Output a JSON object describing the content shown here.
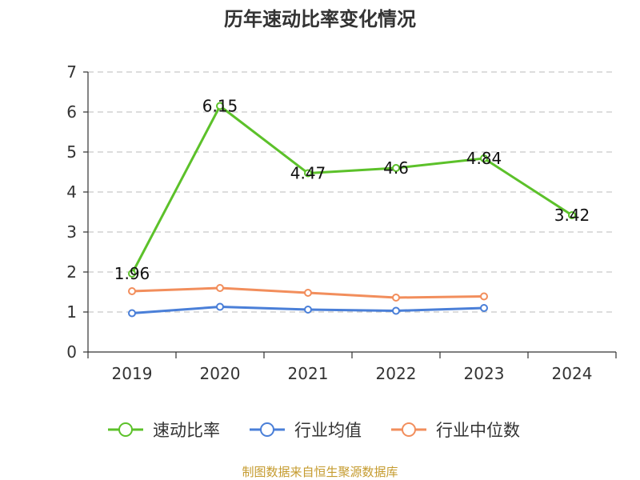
{
  "title": "历年速动比率变化情况",
  "source_note": "制图数据来自恒生聚源数据库",
  "chart_data": {
    "type": "line",
    "categories": [
      "2019",
      "2020",
      "2021",
      "2022",
      "2023",
      "2024"
    ],
    "ylim": [
      0,
      7
    ],
    "yticks": [
      0,
      1,
      2,
      3,
      4,
      5,
      6,
      7
    ],
    "grid": true,
    "legend_position": "bottom",
    "series": [
      {
        "name": "速动比率",
        "color": "#5cc12a",
        "values": [
          1.96,
          6.15,
          4.47,
          4.6,
          4.84,
          3.42
        ],
        "labels": [
          "1.96",
          "6.15",
          "4.47",
          "4.6",
          "4.84",
          "3.42"
        ],
        "show_labels": true
      },
      {
        "name": "行业均值",
        "color": "#4a7fd8",
        "values": [
          0.97,
          1.13,
          1.06,
          1.03,
          1.1,
          null
        ],
        "show_labels": false
      },
      {
        "name": "行业中位数",
        "color": "#f28e5c",
        "values": [
          1.52,
          1.6,
          1.48,
          1.36,
          1.39,
          null
        ],
        "show_labels": false
      }
    ]
  }
}
